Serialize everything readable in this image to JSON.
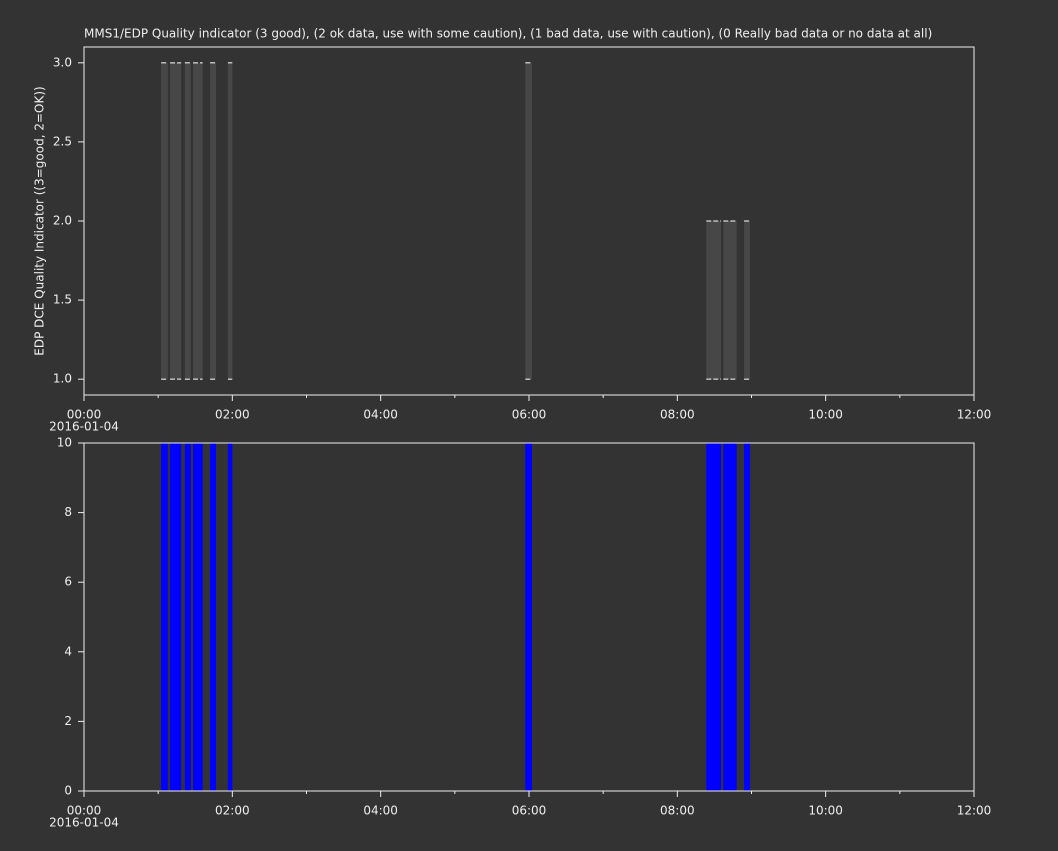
{
  "chart_data": [
    {
      "type": "bar",
      "title": "MMS1/EDP  Quality indicator (3 good), (2 ok data, use with some caution), (1 bad data, use with caution), (0 Really bad data or no data at all)",
      "y_label": "EDP DCE Quality Indicator ((3=good, 2=OK))",
      "date_label": "2016-01-04",
      "x_start": [
        1.04,
        1.16,
        1.36,
        1.47,
        1.7,
        1.94,
        5.95,
        8.39,
        8.62,
        8.9
      ],
      "x_end": [
        1.13,
        1.31,
        1.44,
        1.6,
        1.78,
        2.0,
        6.04,
        8.59,
        8.8,
        8.98
      ],
      "values": [
        3,
        3,
        3,
        3,
        3,
        3,
        3,
        2,
        2,
        2
      ],
      "base": 1,
      "color": "#474747",
      "xlim": [
        0,
        12
      ],
      "xticks": [
        {
          "value": 0,
          "label": "00:00"
        },
        {
          "value": 2,
          "label": "02:00"
        },
        {
          "value": 4,
          "label": "04:00"
        },
        {
          "value": 6,
          "label": "06:00"
        },
        {
          "value": 8,
          "label": "08:00"
        },
        {
          "value": 10,
          "label": "10:00"
        },
        {
          "value": 12,
          "label": "12:00"
        }
      ],
      "xminorticks": [
        1,
        3,
        5,
        7,
        9,
        11
      ],
      "ylim": [
        0.9,
        3.1
      ],
      "yticks": [
        {
          "value": 1,
          "label": "1.0"
        },
        {
          "value": 1.5,
          "label": "1.5"
        },
        {
          "value": 2,
          "label": "2.0"
        },
        {
          "value": 2.5,
          "label": "2.5"
        },
        {
          "value": 3,
          "label": "3.0"
        }
      ]
    },
    {
      "type": "bar",
      "date_label": "2016-01-04",
      "x_start": [
        1.04,
        1.16,
        1.36,
        1.47,
        1.7,
        1.94,
        5.95,
        8.39,
        8.62,
        8.9
      ],
      "x_end": [
        1.13,
        1.31,
        1.44,
        1.6,
        1.78,
        2.0,
        6.04,
        8.59,
        8.8,
        8.98
      ],
      "values": [
        10,
        10,
        10,
        10,
        10,
        10,
        10,
        10,
        10,
        10
      ],
      "base": 0,
      "color": "#0000ff",
      "xlim": [
        0,
        12
      ],
      "xticks": [
        {
          "value": 0,
          "label": "00:00"
        },
        {
          "value": 2,
          "label": "02:00"
        },
        {
          "value": 4,
          "label": "04:00"
        },
        {
          "value": 6,
          "label": "06:00"
        },
        {
          "value": 8,
          "label": "08:00"
        },
        {
          "value": 10,
          "label": "10:00"
        },
        {
          "value": 12,
          "label": "12:00"
        }
      ],
      "xminorticks": [
        1,
        3,
        5,
        7,
        9,
        11
      ],
      "ylim": [
        0,
        10
      ],
      "yticks": [
        0,
        2,
        4,
        6,
        8,
        10
      ]
    }
  ]
}
